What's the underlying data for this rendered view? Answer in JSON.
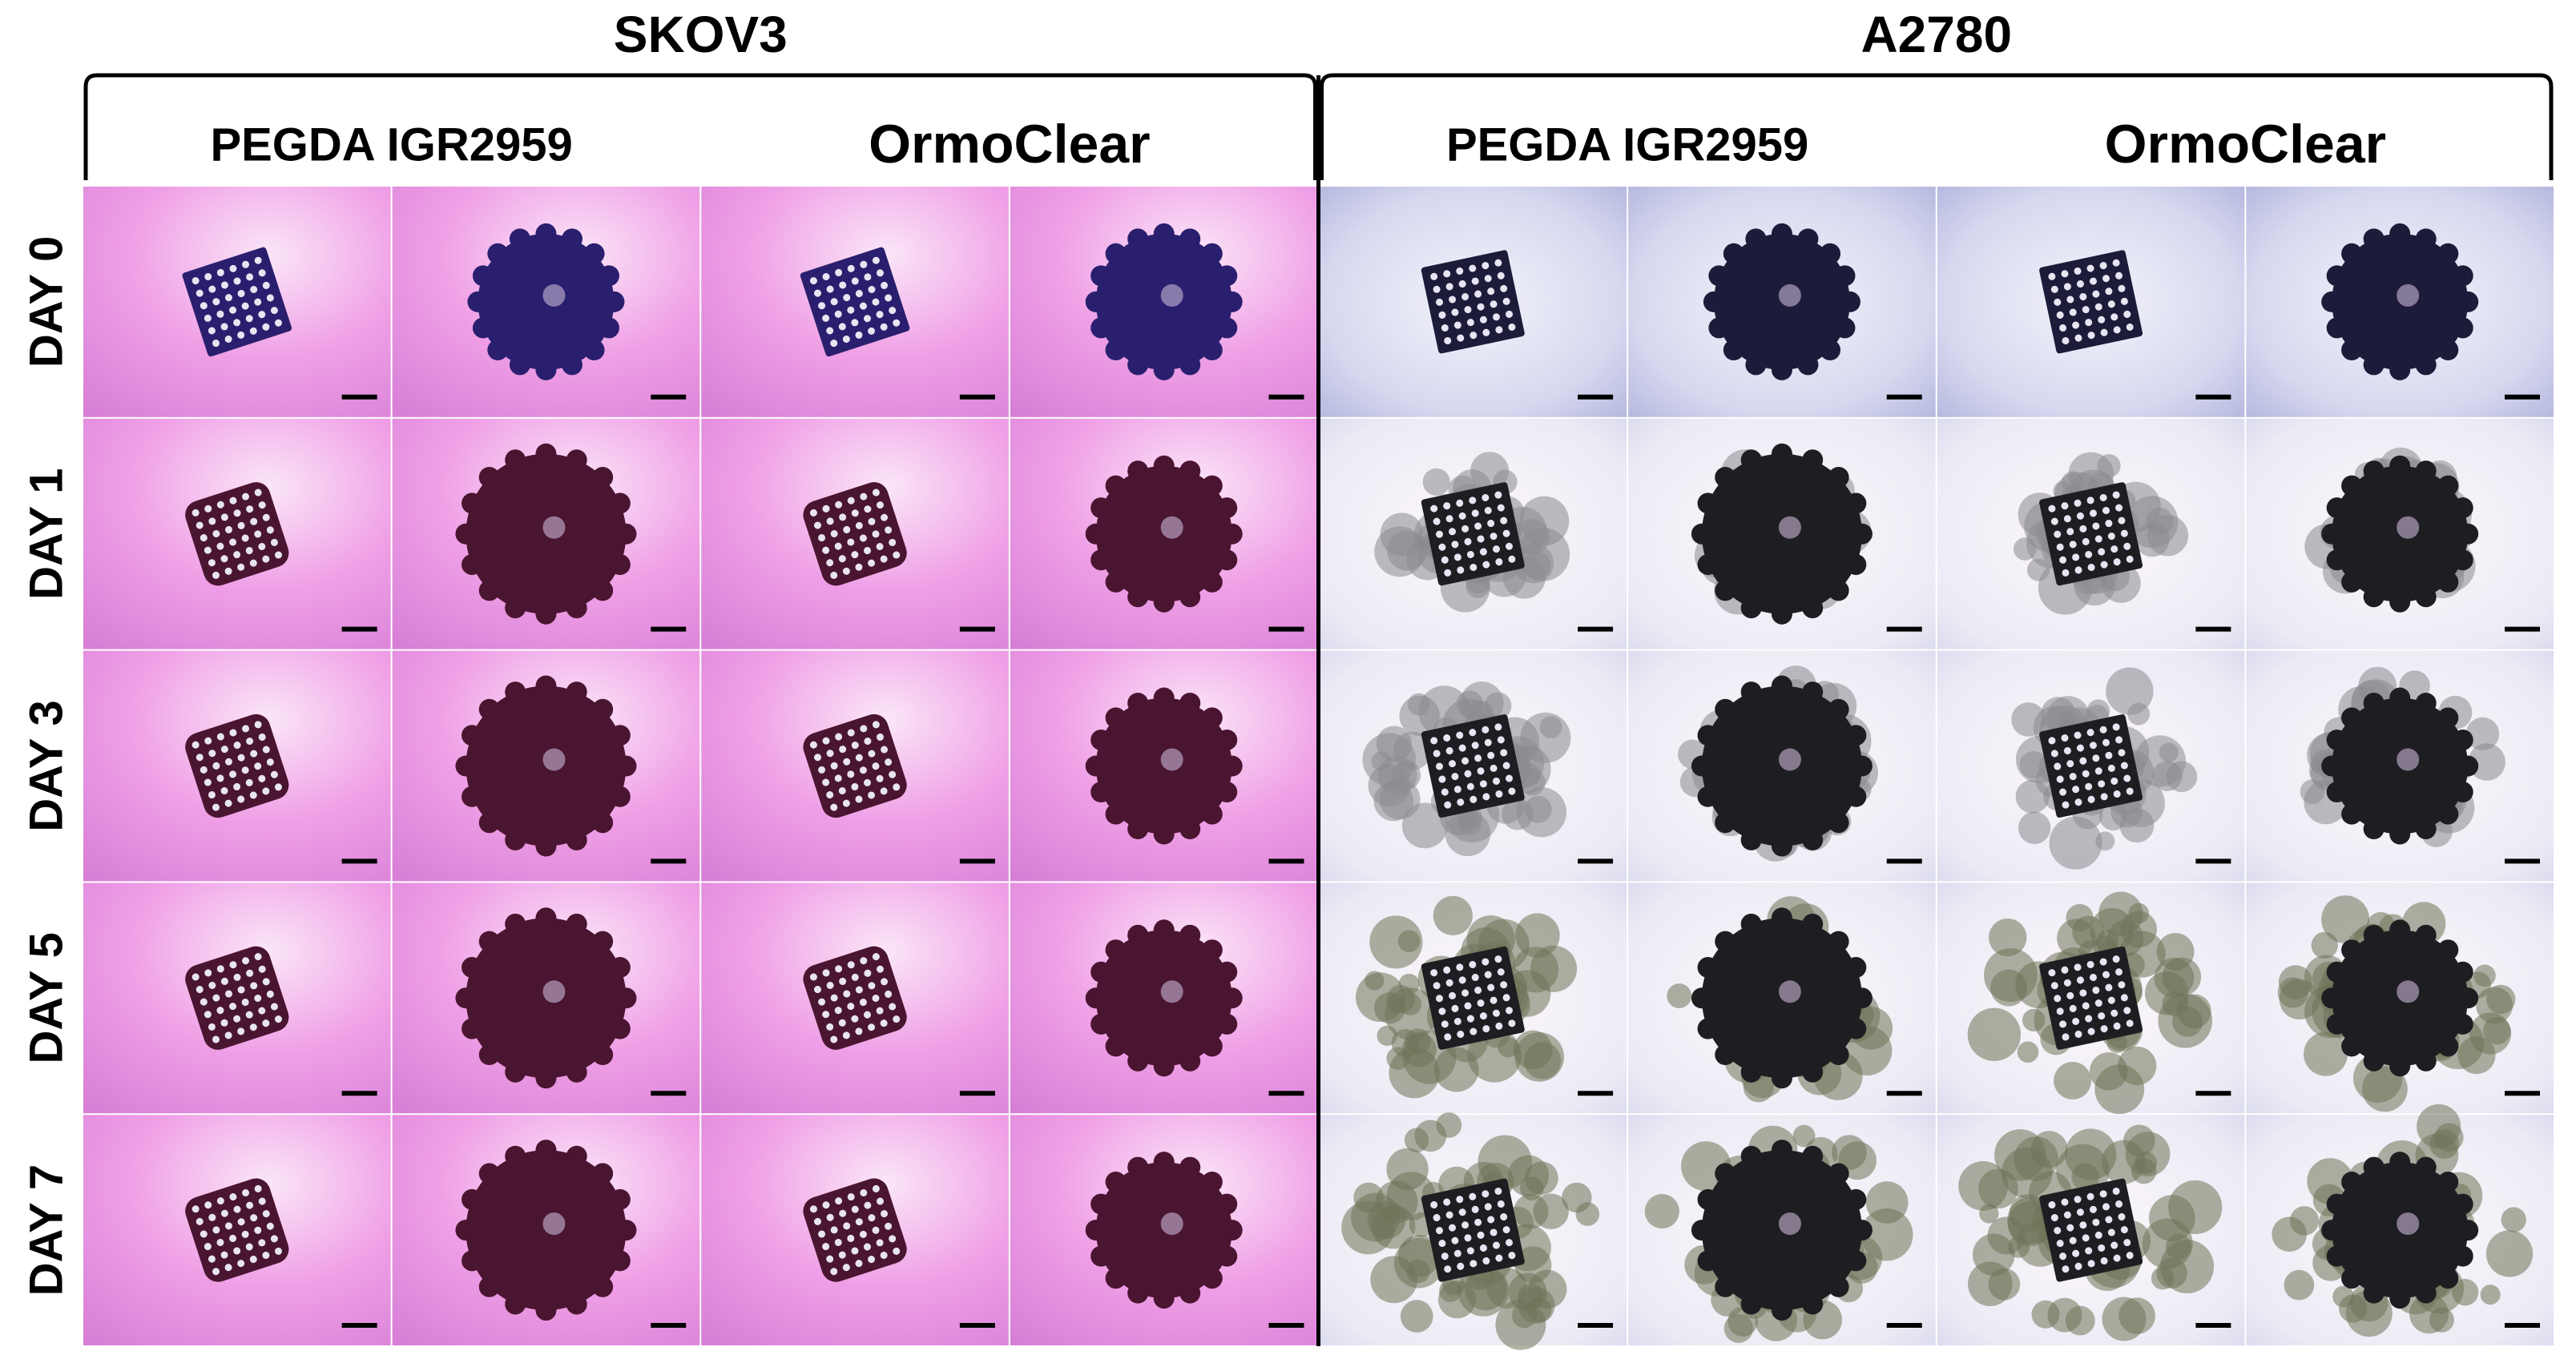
{
  "groups": [
    {
      "title": "SKOV3",
      "materials": [
        "PEGDA IGR2959",
        "OrmoClear"
      ]
    },
    {
      "title": "A2780",
      "materials": [
        "PEGDA IGR2959",
        "OrmoClear"
      ]
    }
  ],
  "rows": [
    "DAY 0",
    "DAY 1",
    "DAY 3",
    "DAY 5",
    "DAY 7"
  ]
}
